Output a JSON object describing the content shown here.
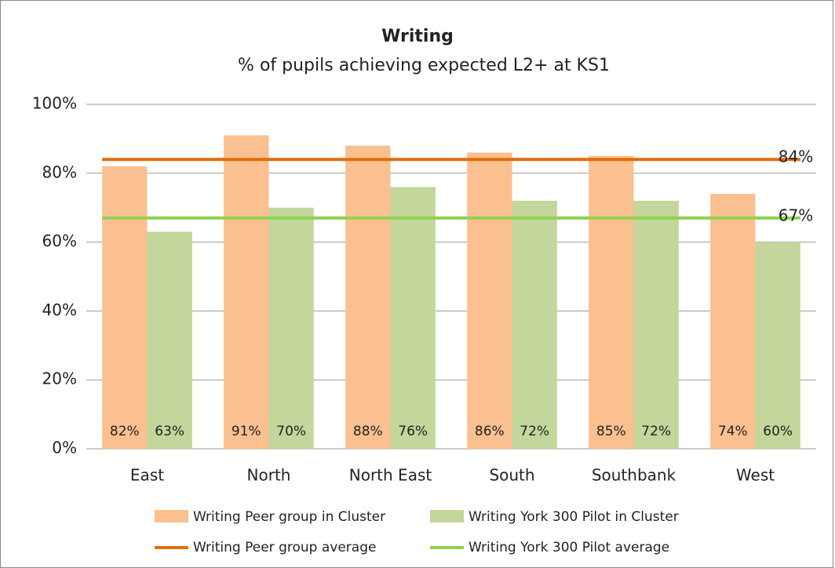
{
  "chart_data": {
    "type": "bar",
    "title": "Writing",
    "subtitle": "% of pupils achieving expected L2+ at KS1",
    "categories": [
      "East",
      "North",
      "North East",
      "South",
      "Southbank",
      "West"
    ],
    "series": [
      {
        "name": "Writing Peer group in Cluster",
        "color": "#fac090",
        "values": [
          82,
          91,
          88,
          86,
          85,
          74
        ],
        "value_labels": [
          "82%",
          "91%",
          "88%",
          "86%",
          "85%",
          "74%"
        ]
      },
      {
        "name": "Writing York 300 Pilot in Cluster",
        "color": "#c3d69b",
        "values": [
          63,
          70,
          76,
          72,
          72,
          60
        ],
        "value_labels": [
          "63%",
          "70%",
          "76%",
          "72%",
          "72%",
          "60%"
        ]
      }
    ],
    "reference_lines": [
      {
        "name": "Writing Peer group average",
        "color": "#e46c0a",
        "value": 84,
        "value_label": "84%"
      },
      {
        "name": "Writing York 300 Pilot average",
        "color": "#92d050",
        "value": 67,
        "value_label": "67%"
      }
    ],
    "ylim": [
      0,
      100
    ],
    "yticks": [
      {
        "value": 0,
        "label": "0%"
      },
      {
        "value": 20,
        "label": "20%"
      },
      {
        "value": 40,
        "label": "40%"
      },
      {
        "value": 60,
        "label": "60%"
      },
      {
        "value": 80,
        "label": "80%"
      },
      {
        "value": 100,
        "label": "100%"
      }
    ],
    "grid": true
  }
}
